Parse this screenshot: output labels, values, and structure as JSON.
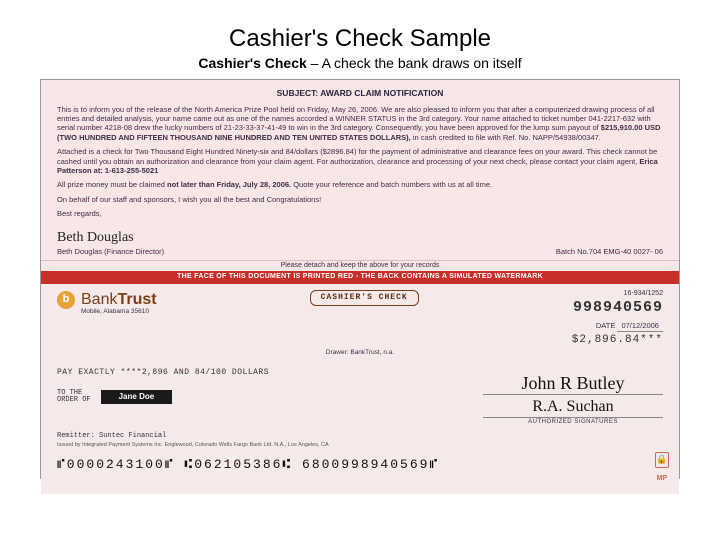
{
  "title": "Cashier's Check Sample",
  "subtitle_bold": "Cashier's Check",
  "subtitle_rest": " – A check the bank draws on itself",
  "colors": {
    "notif_bg": "#f9e6e7",
    "redbar_bg": "#c62f2a",
    "redbar_text": "#ffffff",
    "bank_brown": "#7a3e1a",
    "logo_orange": "#e8a23a",
    "body_text": "#3a3048"
  },
  "notification": {
    "subject": "SUBJECT: AWARD CLAIM NOTIFICATION",
    "para1": "This is to inform you of the release of the North America Prize Pool held on Friday, May 26, 2006. We are also pleased to inform you that after a computerized drawing process of all entries and detailed analysis, your name came out as one of the names accorded a WINNER STATUS in the 3rd category. Your name attached to ticket number 041-2217-632 with serial number 4218-08 drew the lucky numbers of 21-23-33-37-41-49 to win in the 3rd category. Consequently, you have been approved for the lump sum payout of",
    "amount_line": "$215,910.00 USD (TWO HUNDRED AND FIFTEEN THOUSAND NINE HUNDRED AND TEN UNITED STATES DOLLARS),",
    "ref_line": "in cash credited to file with Ref. No. NAPP/54938/00347.",
    "para2a": "Attached is a check for Two Thousand Eight Hundred Ninety-six and 84/dollars ($2896.84) for the payment of administrative and clearance fees on your award. This check cannot be cashed until you obtain an authorization and clearance from your claim agent. For authorization, clearance and processing of your next check, please contact your claim agent, ",
    "agent": "Erica Patterson at: 1-613-255-5021",
    "deadline_pre": "All prize money must be claimed ",
    "deadline_bold": "not later than Friday, July 28, 2006.",
    "deadline_post": " Quote your reference and batch numbers with us at all time.",
    "closing": "On behalf of our staff and sponsors, I wish you all the best and Congratulations!",
    "regards": "Best regards,",
    "signature_script": "Beth Douglas",
    "signature_name": "Beth Douglas (Finance Director)",
    "batch": "Batch No.704 EMG-40 0027- 06",
    "detach": "Please detach and keep the above for your records"
  },
  "redbar": "THE FACE OF THIS DOCUMENT IS PRINTED RED - THE BACK CONTAINS A SIMULATED WATERMARK",
  "check": {
    "bank_logo_letter": "b",
    "bank_name_a": "Bank",
    "bank_name_b": "Trust",
    "bank_addr": "Mobile, Alabama 35610",
    "badge": "CASHIER'S CHECK",
    "routing_small": "16-934/1252",
    "check_number": "998940569",
    "date_label": "DATE",
    "date_value": "07/12/2006",
    "amount": "$2,896.84***",
    "drawer": "Drawer: BankTrust, n.a.",
    "pay_line": "PAY   EXACTLY   ****2,896 AND 84/100 DOLLARS",
    "order_label_1": "TO THE",
    "order_label_2": "ORDER OF",
    "payee": "Jane Doe",
    "sig1": "John R Butley",
    "sig2": "R.A. Suchan",
    "auth_label": "AUTHORIZED SIGNATURES",
    "remitter_label": "Remitter:",
    "remitter_value": "Suntec Financial",
    "fineprint": "Issued by Integrated Payment Systems Inc. Englewood, Colorado Wells Fargo Bank Ltd. N.A., Los Angeles, CA",
    "micr": "⑈0000243100⑈  ⑆062105386⑆  6800998940569⑈",
    "mp": "MP"
  }
}
